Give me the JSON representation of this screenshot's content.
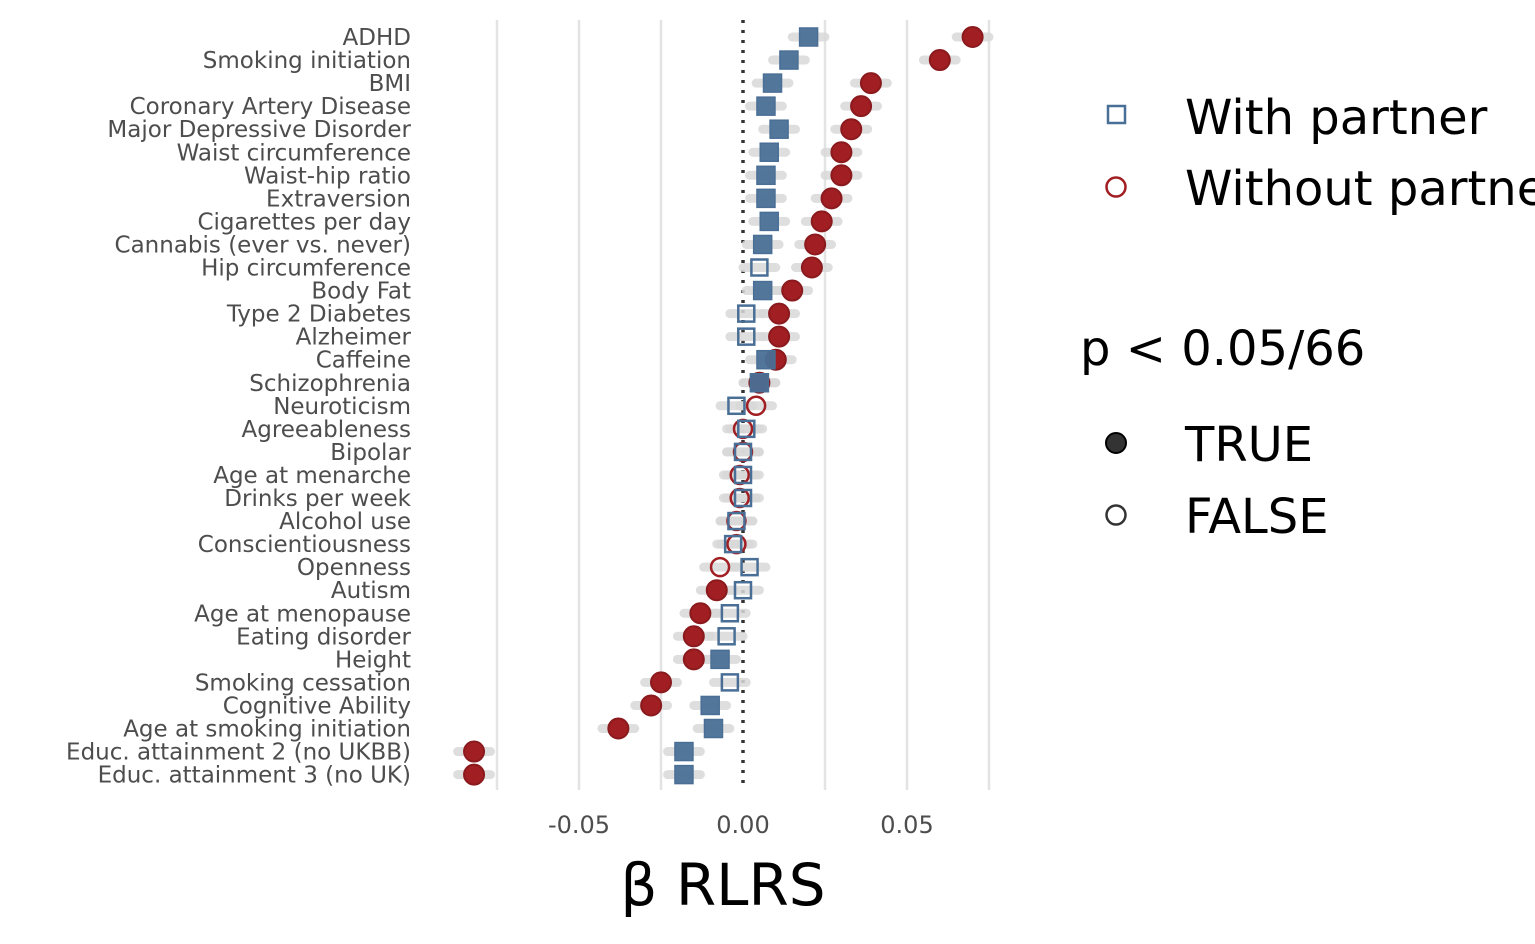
{
  "chart_data": {
    "type": "scatter",
    "title": "",
    "xlabel": "β RLRS",
    "ylabel": "",
    "xlim": [
      -0.0875,
      0.0775
    ],
    "x_ticks": [
      -0.05,
      0.0,
      0.05
    ],
    "x_tick_labels": [
      "-0.05",
      "0.00",
      "0.05"
    ],
    "gridlines_x": [
      -0.075,
      -0.05,
      -0.025,
      0.025,
      0.05,
      0.075
    ],
    "reference_line_x": 0,
    "categories": [
      "ADHD",
      "Smoking initiation",
      "BMI",
      "Coronary Artery Disease",
      "Major Depressive Disorder",
      "Waist circumference",
      "Waist-hip ratio",
      "Extraversion",
      "Cigarettes per day",
      "Cannabis (ever vs. never)",
      "Hip circumference",
      "Body Fat",
      "Type 2 Diabetes",
      "Alzheimer",
      "Caffeine",
      "Schizophrenia",
      "Neuroticism",
      "Agreeableness",
      "Bipolar",
      "Age at menarche",
      "Drinks per week",
      "Alcohol use",
      "Conscientiousness",
      "Openness",
      "Autism",
      "Age at menopause",
      "Eating disorder",
      "Height",
      "Smoking cessation",
      "Cognitive Ability",
      "Age at smoking initiation",
      "Educ. attainment 2 (no UKBB)",
      "Educ. attainment 3 (no UK)"
    ],
    "series": [
      {
        "name": "With partner",
        "shape": "square",
        "color": "#4a6f96",
        "values": [
          0.02,
          0.014,
          0.009,
          0.007,
          0.011,
          0.008,
          0.007,
          0.007,
          0.008,
          0.006,
          0.005,
          0.006,
          0.001,
          0.001,
          0.007,
          0.005,
          -0.002,
          0.001,
          0.0,
          0.0,
          0.0,
          -0.002,
          -0.003,
          0.002,
          0.0,
          -0.004,
          -0.005,
          -0.007,
          -0.004,
          -0.01,
          -0.009,
          -0.018,
          -0.018
        ],
        "significant": [
          true,
          true,
          true,
          true,
          true,
          true,
          true,
          true,
          true,
          true,
          false,
          true,
          false,
          false,
          true,
          true,
          false,
          false,
          false,
          false,
          false,
          false,
          false,
          false,
          false,
          false,
          false,
          true,
          false,
          true,
          true,
          true,
          true
        ]
      },
      {
        "name": "Without partner",
        "shape": "circle",
        "color": "#a11e22",
        "values": [
          0.07,
          0.06,
          0.039,
          0.036,
          0.033,
          0.03,
          0.03,
          0.027,
          0.024,
          0.022,
          0.021,
          0.015,
          0.011,
          0.011,
          0.01,
          0.005,
          0.004,
          0.0,
          0.0,
          -0.001,
          -0.001,
          -0.002,
          -0.002,
          -0.007,
          -0.008,
          -0.013,
          -0.015,
          -0.015,
          -0.025,
          -0.028,
          -0.038,
          -0.082,
          -0.082
        ],
        "significant": [
          true,
          true,
          true,
          true,
          true,
          true,
          true,
          true,
          true,
          true,
          true,
          true,
          true,
          true,
          true,
          true,
          false,
          false,
          false,
          false,
          false,
          false,
          false,
          false,
          true,
          true,
          true,
          true,
          true,
          true,
          true,
          true,
          true
        ]
      }
    ],
    "legend": {
      "placement": "right",
      "series_entries": [
        "With partner",
        "Without partner"
      ],
      "significance_title": "p < 0.05/66",
      "significance_entries": [
        "TRUE",
        "FALSE"
      ]
    }
  },
  "colors": {
    "with_partner": "#4a6f96",
    "without_partner": "#a11e22",
    "grid": "#e3e3e3",
    "ci": "#d9d9d9",
    "legend_sig": "#333333"
  }
}
